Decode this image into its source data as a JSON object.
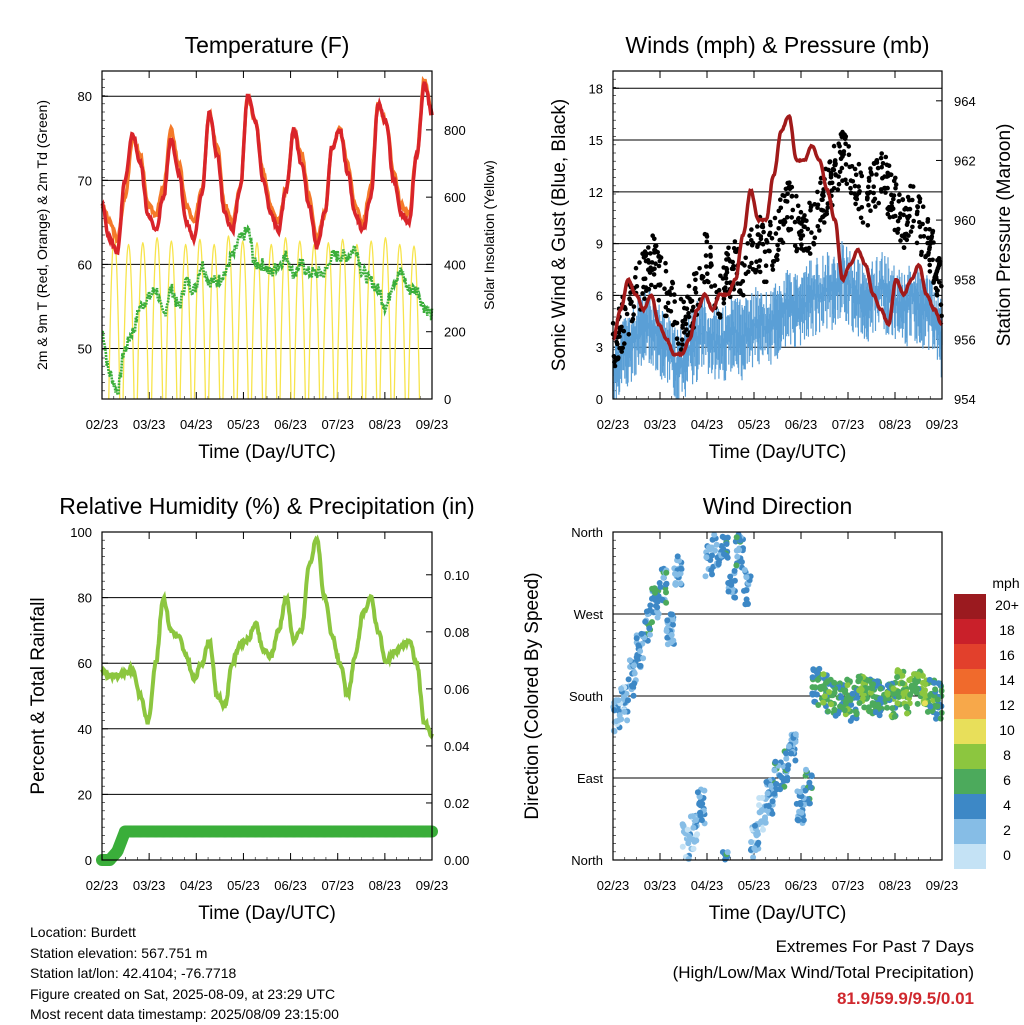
{
  "x_ticks": [
    "02/23",
    "03/23",
    "04/23",
    "05/23",
    "06/23",
    "07/23",
    "08/23",
    "09/23"
  ],
  "x_label": "Time (Day/UTC)",
  "colors": {
    "temp_2m": "#f47a2a",
    "temp_9m": "#d9242a",
    "dewpoint": "#3aae3a",
    "insolation": "#f7e44c",
    "gust": "#000000",
    "wind": "#5a9fd6",
    "pressure": "#a11a1a",
    "rh": "#8cc63f",
    "precip": "#3aae3a"
  },
  "chart_data": [
    {
      "id": "temperature",
      "type": "line",
      "title": "Temperature (F)",
      "xlabel": "Time (Day/UTC)",
      "ylabel": "2m & 9m T (Red, Orange) & 2m Td (Green)",
      "y2label": "Solar Insolation (Yellow)",
      "ylim": [
        44,
        83
      ],
      "y2lim": [
        0,
        975
      ],
      "yticks": [
        50,
        60,
        70,
        80
      ],
      "y2ticks": [
        0,
        200,
        400,
        600,
        800
      ],
      "grid": true,
      "series": [
        {
          "key": "t9m",
          "axis": "left",
          "values": [
            67,
            63,
            61.5,
            70,
            75.5,
            72,
            66,
            64,
            68,
            75,
            71,
            65,
            63,
            68.5,
            78,
            73,
            66,
            64,
            69,
            80,
            77,
            70,
            66,
            64,
            69,
            76,
            72,
            67,
            62,
            66,
            74,
            76,
            71,
            66,
            64,
            68,
            79,
            77,
            70,
            66,
            65,
            73,
            81.5,
            78
          ]
        },
        {
          "key": "t2m",
          "axis": "left",
          "values": [
            67,
            65,
            63,
            68,
            75,
            73,
            67,
            66,
            69,
            76,
            72,
            67,
            65,
            69,
            78,
            74,
            67,
            65,
            69,
            80,
            77,
            71,
            67,
            65,
            69,
            76,
            73,
            68,
            63,
            66,
            74,
            76,
            72,
            67,
            65,
            69,
            79,
            77,
            71,
            67,
            66,
            73,
            81.9,
            78
          ]
        },
        {
          "key": "td",
          "axis": "left",
          "values": [
            52,
            47,
            45,
            50,
            52,
            55,
            56,
            57,
            54,
            57,
            55,
            58,
            57,
            60,
            58,
            58,
            59,
            61,
            63,
            64,
            60,
            60,
            59,
            60,
            61,
            59,
            60,
            59,
            59,
            59,
            61,
            61,
            61,
            62,
            59,
            58,
            57,
            55,
            58,
            59,
            57,
            57,
            55,
            54
          ]
        },
        {
          "key": "insolation",
          "axis": "right",
          "peaks": [
            910,
            860,
            870,
            900,
            880,
            860,
            890,
            860,
            910,
            880,
            870,
            860,
            900,
            880,
            860,
            870,
            890,
            860,
            880,
            900,
            860,
            850
          ]
        }
      ]
    },
    {
      "id": "winds",
      "type": "scatter",
      "title": "Winds (mph) & Pressure (mb)",
      "xlabel": "Time (Day/UTC)",
      "ylabel": "Sonic Wind & Gust (Blue, Black)",
      "y2label": "Station Pressure (Maroon)",
      "ylim": [
        0,
        19
      ],
      "y2lim": [
        954,
        965
      ],
      "yticks": [
        0,
        3,
        6,
        9,
        12,
        15,
        18
      ],
      "y2ticks": [
        954,
        956,
        958,
        960,
        962,
        964
      ],
      "grid": true,
      "series": [
        {
          "key": "gust",
          "axis": "left",
          "values": [
            3,
            4,
            5,
            6,
            7,
            8,
            7,
            6,
            5,
            4,
            5,
            6,
            8,
            7,
            6,
            7,
            8,
            7,
            8,
            9,
            8,
            9,
            10,
            11,
            10,
            9,
            10,
            11,
            12,
            13,
            14,
            13,
            12,
            11,
            12,
            13,
            12,
            11,
            10,
            11,
            10,
            9,
            8,
            6
          ]
        },
        {
          "key": "wind",
          "axis": "left",
          "values": [
            1.5,
            2.5,
            3,
            3.5,
            4,
            4.5,
            3.5,
            3,
            2,
            2,
            3,
            3.5,
            4,
            3.5,
            3,
            3.5,
            4,
            3.5,
            4,
            4.5,
            4,
            4.5,
            5,
            5.5,
            5,
            5.5,
            6,
            6,
            6.5,
            6.5,
            7,
            6.5,
            6,
            5.5,
            6,
            6.5,
            6,
            5.5,
            5,
            6,
            5.5,
            5,
            4.5,
            3.5
          ]
        },
        {
          "key": "pressure",
          "axis": "right",
          "values": [
            956,
            957,
            958,
            957.5,
            957,
            957.5,
            956.5,
            956,
            955.5,
            955.5,
            956,
            957,
            957.5,
            957,
            957.5,
            957.5,
            958,
            959.5,
            961,
            960,
            960,
            961.5,
            963,
            963.5,
            962,
            962,
            962.5,
            962,
            961,
            960,
            958,
            958.5,
            959,
            958.5,
            957.5,
            957,
            956.5,
            958,
            957.5,
            958,
            958.5,
            957.5,
            957,
            956.5
          ]
        }
      ]
    },
    {
      "id": "humidity",
      "type": "line",
      "title": "Relative Humidity (%) & Precipitation (in)",
      "xlabel": "Time (Day/UTC)",
      "ylabel": "Percent & Total Rainfall",
      "ylim": [
        0,
        100
      ],
      "y2lim": [
        0,
        0.115
      ],
      "yticks": [
        0,
        20,
        40,
        60,
        80,
        100
      ],
      "y2ticks": [
        "0.00",
        "0.02",
        "0.04",
        "0.06",
        "0.08",
        "0.10"
      ],
      "grid": true,
      "series": [
        {
          "key": "rh",
          "axis": "left",
          "values": [
            58,
            56,
            56,
            57,
            58,
            50,
            42,
            60,
            80,
            70,
            68,
            62,
            55,
            60,
            67,
            50,
            47,
            60,
            66,
            67,
            72,
            64,
            62,
            70,
            80,
            67,
            70,
            90,
            98,
            80,
            68,
            60,
            50,
            62,
            75,
            80,
            70,
            60,
            63,
            65,
            67,
            60,
            42,
            38
          ]
        },
        {
          "key": "precip",
          "axis": "right",
          "values": [
            0,
            0,
            0.003,
            0.01,
            0.01,
            0.01,
            0.01,
            0.01,
            0.01,
            0.01,
            0.01,
            0.01,
            0.01,
            0.01,
            0.01,
            0.01,
            0.01,
            0.01,
            0.01,
            0.01,
            0.01,
            0.01,
            0.01,
            0.01,
            0.01,
            0.01,
            0.01,
            0.01,
            0.01,
            0.01,
            0.01,
            0.01,
            0.01,
            0.01,
            0.01,
            0.01,
            0.01,
            0.01,
            0.01,
            0.01,
            0.01,
            0.01,
            0.01,
            0.01
          ]
        }
      ]
    },
    {
      "id": "direction",
      "type": "scatter",
      "title": "Wind Direction",
      "xlabel": "Time (Day/UTC)",
      "ylabel": "Direction (Colored By Speed)",
      "ylim": [
        0,
        360
      ],
      "yticks": [
        "North",
        "East",
        "South",
        "West",
        "North"
      ],
      "grid": true,
      "series": [
        {
          "key": "direction",
          "values": [
            160,
            170,
            200,
            230,
            260,
            280,
            300,
            250,
            320,
            20,
            30,
            60,
            330,
            340,
            350,
            300,
            340,
            300,
            20,
            50,
            70,
            90,
            100,
            120,
            60,
            80,
            190,
            185,
            180,
            175,
            180,
            170,
            185,
            180,
            178,
            185,
            175,
            190,
            180,
            185,
            190,
            180,
            175,
            165
          ]
        },
        {
          "key": "speed",
          "values": [
            2,
            2,
            3,
            3,
            4,
            4,
            4,
            3,
            3,
            2,
            2,
            3,
            3,
            3,
            4,
            3,
            4,
            3,
            2,
            2,
            3,
            4,
            4,
            3,
            3,
            4,
            5,
            6,
            6,
            5,
            6,
            5,
            7,
            6,
            5,
            6,
            6,
            7,
            7,
            6,
            8,
            6,
            5,
            4
          ]
        }
      ],
      "colorbar": {
        "unit": "mph",
        "labels": [
          "20+",
          "18",
          "16",
          "14",
          "12",
          "10",
          "8",
          "6",
          "4",
          "2",
          "0"
        ],
        "colors": [
          "#9b1a1f",
          "#c9202a",
          "#e2402c",
          "#f06a2c",
          "#f7a84a",
          "#e8df5a",
          "#8cc63f",
          "#4caa5c",
          "#3d88c6",
          "#86bde6",
          "#c4e2f5"
        ]
      }
    }
  ],
  "station": {
    "location": "Location: Burdett",
    "elevation": "Station elevation: 567.751 m",
    "latlon": "Station lat/lon: 42.4104; -76.7718",
    "created": "Figure created on Sat, 2025-08-09, at 23:29 UTC",
    "recent": "Most recent data timestamp: 2025/08/09 23:15:00"
  },
  "extremes": {
    "title": "Extremes For Past 7 Days",
    "subtitle": "(High/Low/Max Wind/Total Precipitation)",
    "values": "81.9/59.9/9.5/0.01"
  }
}
